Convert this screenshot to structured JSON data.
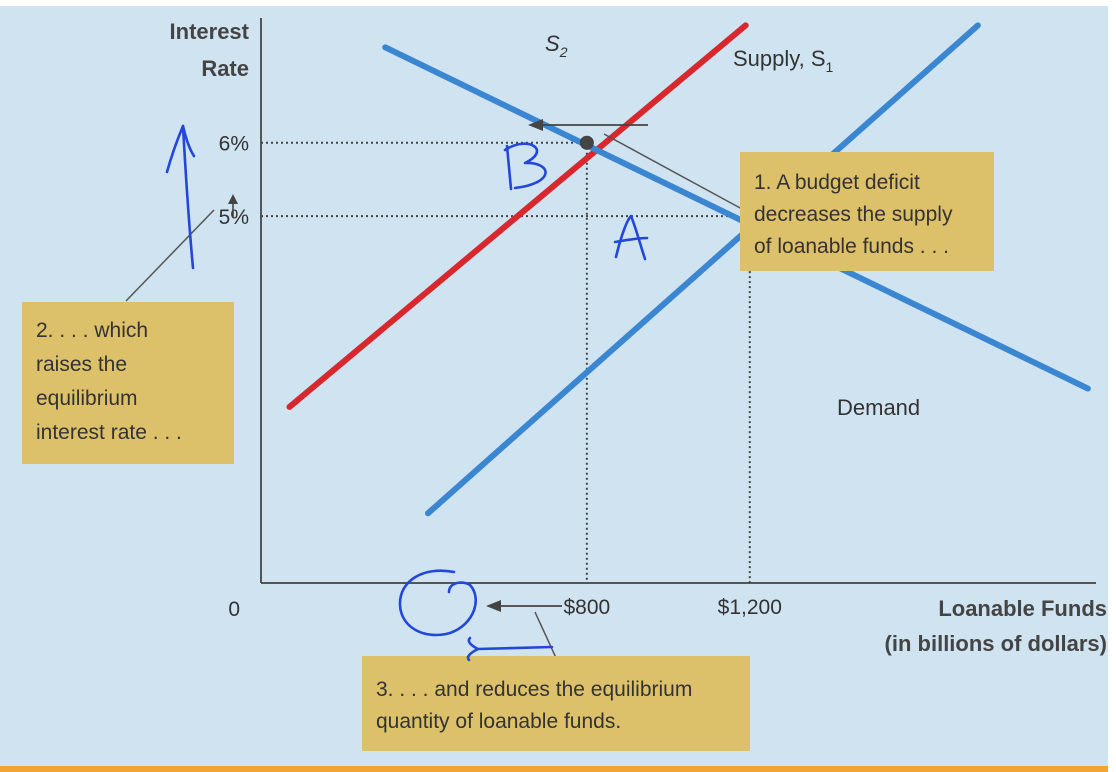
{
  "chart_data": {
    "type": "line",
    "ylabel_lines": [
      "Interest",
      "Rate"
    ],
    "xlabel_lines": [
      "Loanable Funds",
      "(in billions of dollars)"
    ],
    "origin_label": "0",
    "x_ticks": [
      {
        "value": 800,
        "label": "$800"
      },
      {
        "value": 1200,
        "label": "$1,200"
      }
    ],
    "y_ticks": [
      {
        "value": 6,
        "label": "6%"
      },
      {
        "value": 5,
        "label": "5%"
      }
    ],
    "xlim": [
      0,
      2050
    ],
    "ylim": [
      0,
      7.7
    ],
    "series": [
      {
        "name": "S2",
        "label_main": "S",
        "label_sub": "2",
        "color": "#d9272e",
        "points": [
          [
            70,
            2.4
          ],
          [
            1190,
            7.6
          ]
        ]
      },
      {
        "name": "Supply, S1",
        "label_main": "Supply, S",
        "label_sub": "1",
        "color": "#3b86d1",
        "points": [
          [
            410,
            0.95
          ],
          [
            1760,
            7.6
          ]
        ]
      },
      {
        "name": "Demand",
        "label_main": "Demand",
        "label_sub": "",
        "color": "#3b86d1",
        "points": [
          [
            305,
            7.3
          ],
          [
            2030,
            2.65
          ]
        ]
      }
    ],
    "equilibria": [
      {
        "name": "B",
        "x": 800,
        "y": 6
      },
      {
        "name": "A",
        "x": 1200,
        "y": 5
      }
    ],
    "annotations": {
      "note1": [
        "1. A budget deficit",
        "decreases the supply",
        "of loanable funds . . ."
      ],
      "note2": [
        "2. . . . which",
        "raises the",
        "equilibrium",
        "interest rate . . ."
      ],
      "note3": [
        "3. . . . and reduces the equilibrium",
        "quantity of loanable funds."
      ],
      "handwritten": [
        "B",
        "A"
      ]
    }
  },
  "colors": {
    "background": "#cfe3f1",
    "note_box": "#dcc06a",
    "supply_demand": "#3b86d1",
    "shifted_supply": "#d9272e",
    "pen": "#2347d8",
    "bottom_rule": "#f2a436"
  }
}
